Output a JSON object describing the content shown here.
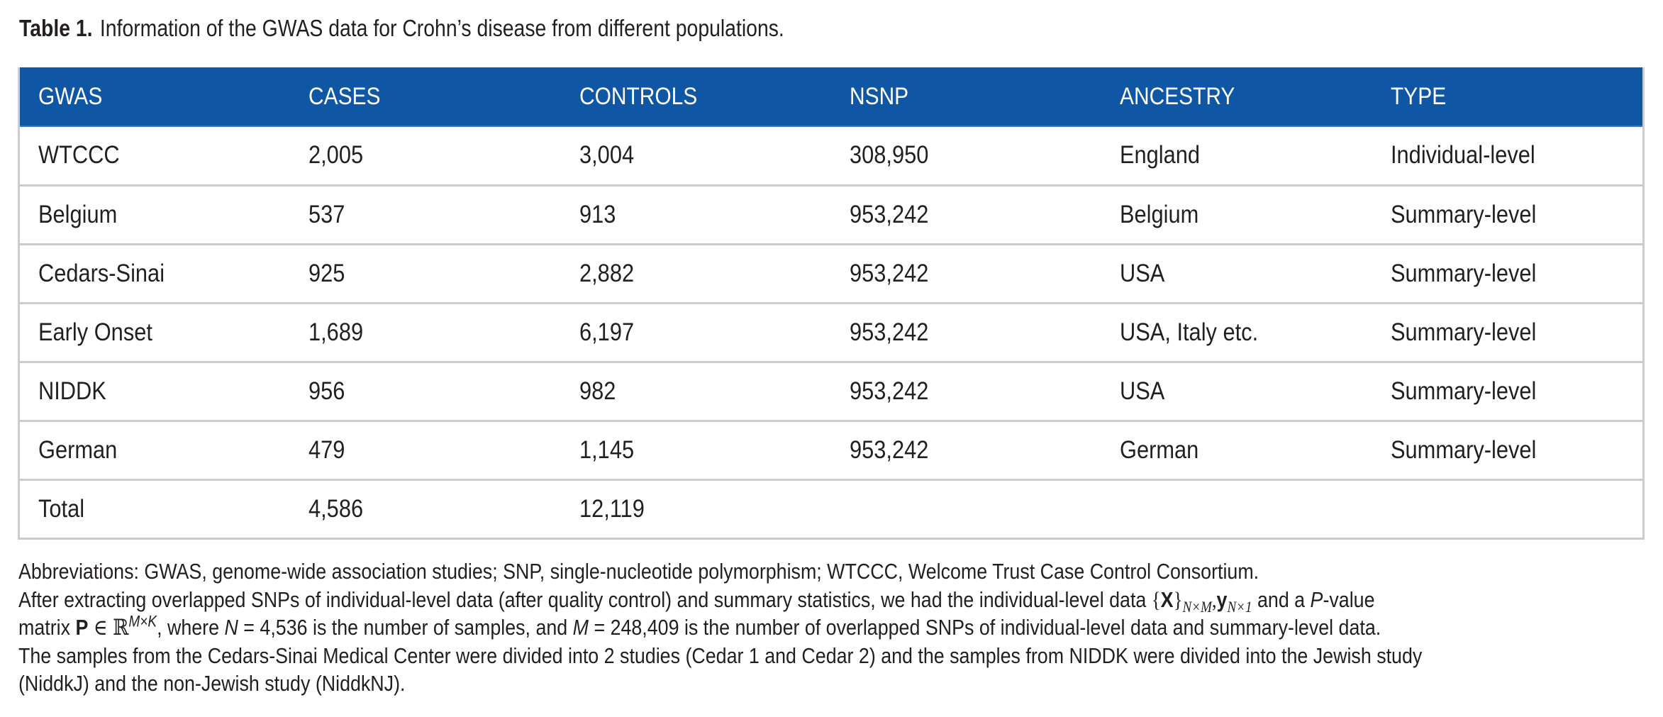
{
  "caption": {
    "label": "Table 1.",
    "title": "Information of the GWAS data for Crohn’s disease from different populations."
  },
  "table": {
    "header_color": "#0f57a5",
    "columns": [
      "GWAS",
      "CASES",
      "CONTROLS",
      "NSNP",
      "ANCESTRY",
      "TYPE"
    ],
    "rows": [
      [
        "WTCCC",
        "2,005",
        "3,004",
        "308,950",
        "England",
        "Individual-level"
      ],
      [
        "Belgium",
        "537",
        "913",
        "953,242",
        "Belgium",
        "Summary-level"
      ],
      [
        "Cedars-Sinai",
        "925",
        "2,882",
        "953,242",
        "USA",
        "Summary-level"
      ],
      [
        "Early Onset",
        "1,689",
        "6,197",
        "953,242",
        "USA, Italy etc.",
        "Summary-level"
      ],
      [
        "NIDDK",
        "956",
        "982",
        "953,242",
        "USA",
        "Summary-level"
      ],
      [
        "German",
        "479",
        "1,145",
        "953,242",
        "German",
        "Summary-level"
      ],
      [
        "Total",
        "4,586",
        "12,119",
        "",
        "",
        ""
      ]
    ]
  },
  "notes": {
    "abbreviations": "Abbreviations: GWAS, genome-wide association studies; SNP, single-nucleotide polymorphism; WTCCC, Welcome Trust Case Control Consortium.",
    "line2_a": "After extracting overlapped SNPs of individual-level data (after quality control) and summary statistics, we had the individual-level data",
    "math_X": "X",
    "math_X_sub": "N×M",
    "math_y": "y",
    "math_y_sub": "N×1",
    "line2_b": "and a",
    "line2_P": "P",
    "line2_c": "-value",
    "line3_a": "matrix",
    "math_P": "P",
    "math_in": "∈",
    "math_R": "ℝ",
    "math_R_sup": "M×K",
    "line3_b": ", where",
    "math_N": "N",
    "math_N_val": " = 4,536",
    "line3_c": "is the number of samples, and",
    "math_M": "M",
    "math_M_val": " = 248,409",
    "line3_d": "is the number of overlapped SNPs of individual-level data and summary-level data.",
    "line4": "The samples from the Cedars-Sinai Medical Center were divided into 2 studies (Cedar 1 and Cedar 2) and the samples from NIDDK were divided into the Jewish study",
    "line5": "(NiddkJ) and the non-Jewish study (NiddkNJ)."
  }
}
